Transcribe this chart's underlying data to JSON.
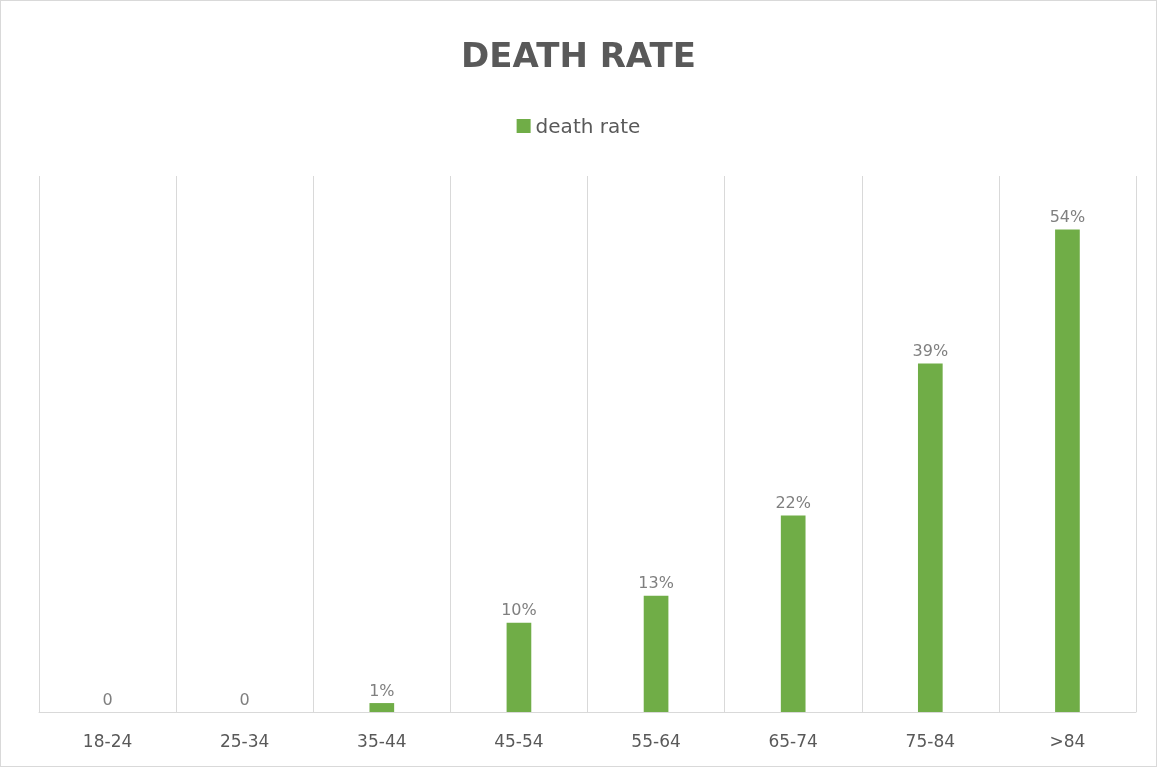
{
  "chart_data": {
    "type": "bar",
    "title": "DEATH RATE",
    "categories": [
      "18-24",
      "25-34",
      "35-44",
      "45-54",
      "55-64",
      "65-74",
      "75-84",
      ">84"
    ],
    "series": [
      {
        "name": "death rate",
        "color": "#70ad47",
        "values": [
          0,
          0,
          1,
          10,
          13,
          22,
          39,
          54
        ],
        "value_labels": [
          "0",
          "0",
          "1%",
          "10%",
          "13%",
          "22%",
          "39%",
          "54%"
        ]
      }
    ],
    "grid": "x",
    "legend": "top"
  }
}
